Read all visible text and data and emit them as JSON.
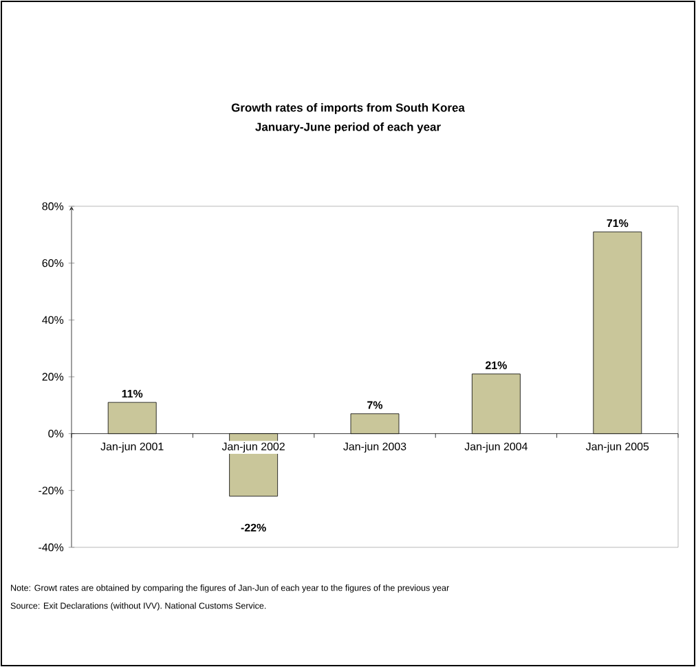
{
  "chart_data": {
    "type": "bar",
    "title": "Growth rates of imports from South Korea",
    "subtitle": "January-June period of each year",
    "categories": [
      "Jan-jun 2001",
      "Jan-jun 2002",
      "Jan-jun 2003",
      "Jan-jun 2004",
      "Jan-jun 2005"
    ],
    "values": [
      11,
      -22,
      7,
      21,
      71
    ],
    "color": "#c9c69a",
    "ylim": [
      -40,
      80
    ],
    "yticks": [
      {
        "value": -40,
        "label": "-40%"
      },
      {
        "value": -20,
        "label": "-20%"
      },
      {
        "value": 0,
        "label": "0%"
      },
      {
        "value": 20,
        "label": "20%"
      },
      {
        "value": 40,
        "label": "40%"
      },
      {
        "value": 60,
        "label": "60%"
      },
      {
        "value": 80,
        "label": "80%"
      }
    ],
    "value_labels": [
      "11%",
      "-22%",
      "7%",
      "21%",
      "71%"
    ],
    "grid": false,
    "annotations": [
      "Note: Growt rates are obtained by comparing the figures of Jan-Jun of each year to the figures of the previous year",
      "Source: Exit Declarations (without IVV). National Customs Service."
    ]
  }
}
